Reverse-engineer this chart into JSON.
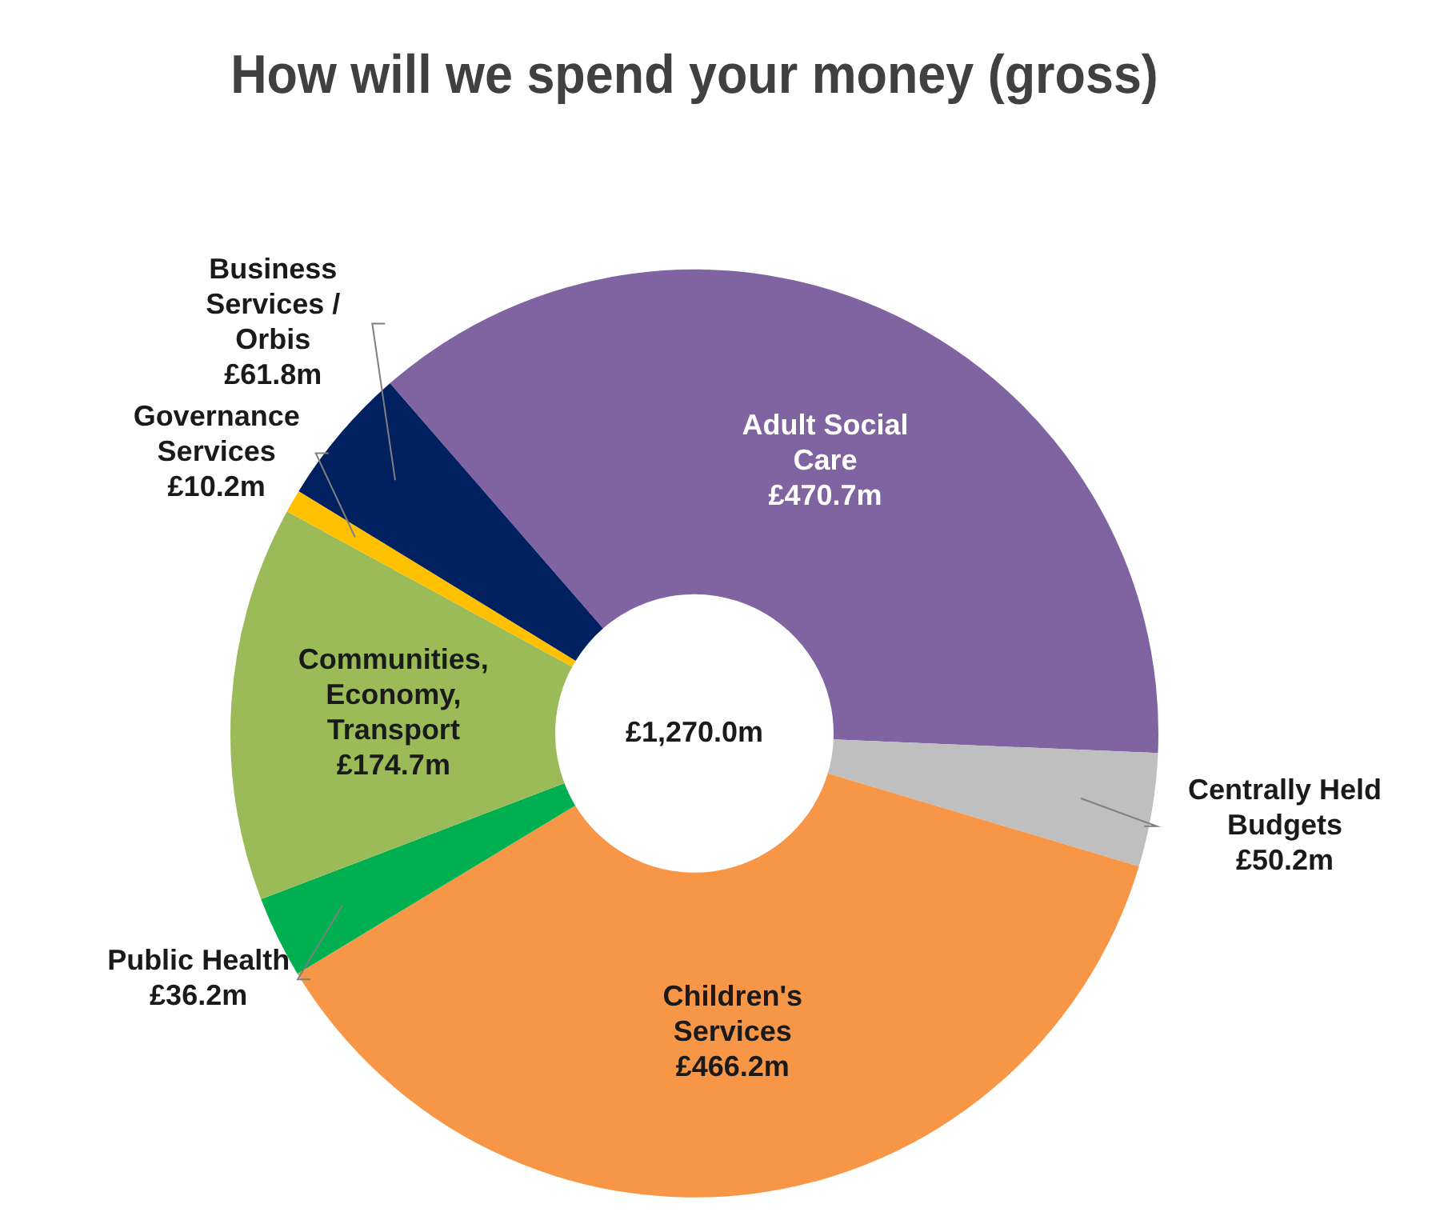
{
  "chart_data": {
    "type": "donut",
    "title": "How will we spend your money (gross)",
    "categories": [
      "Adult Social Care",
      "Centrally Held Budgets",
      "Children's Services",
      "Public Health",
      "Communities, Economy, Transport",
      "Governance Services",
      "Business Services / Orbis"
    ],
    "values": [
      470.7,
      50.2,
      466.2,
      36.2,
      174.7,
      10.2,
      61.8
    ],
    "value_labels": [
      "£470.7m",
      "£50.2m",
      "£466.2m",
      "£36.2m",
      "£174.7m",
      "£10.2m",
      "£61.8m"
    ],
    "colors": [
      "#8064a2",
      "#bfbfbf",
      "#f79646",
      "#00b050",
      "#9bbb59",
      "#ffc000",
      "#002060"
    ],
    "annotations": [
      "£1,270.0m"
    ]
  }
}
